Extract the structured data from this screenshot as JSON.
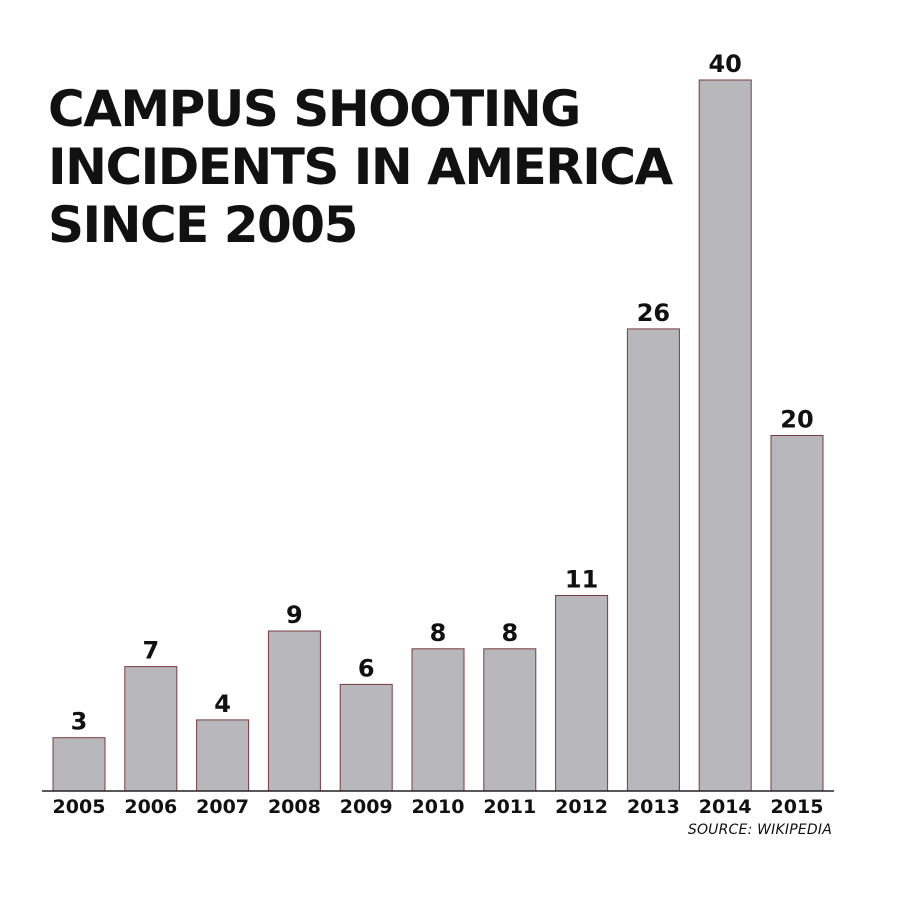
{
  "chart_data": {
    "type": "bar",
    "title_lines": [
      "CAMPUS SHOOTING",
      "INCIDENTS IN AMERICA",
      "SINCE 2005"
    ],
    "categories": [
      "2005",
      "2006",
      "2007",
      "2008",
      "2009",
      "2010",
      "2011",
      "2012",
      "2013",
      "2014",
      "2015"
    ],
    "values": [
      3,
      7,
      4,
      9,
      6,
      8,
      8,
      11,
      26,
      40,
      20
    ],
    "data_labels": [
      "3",
      "7",
      "4",
      "9",
      "6",
      "8",
      "8",
      "11",
      "26",
      "40",
      "20"
    ],
    "ylim": [
      0,
      40
    ],
    "grid": false,
    "source": "SOURCE: WIKIPEDIA"
  },
  "colors": {
    "bar_fill": "#b7b7bc",
    "bar_outline": "#7a3b3b",
    "text": "#111111",
    "axis": "#222222"
  }
}
